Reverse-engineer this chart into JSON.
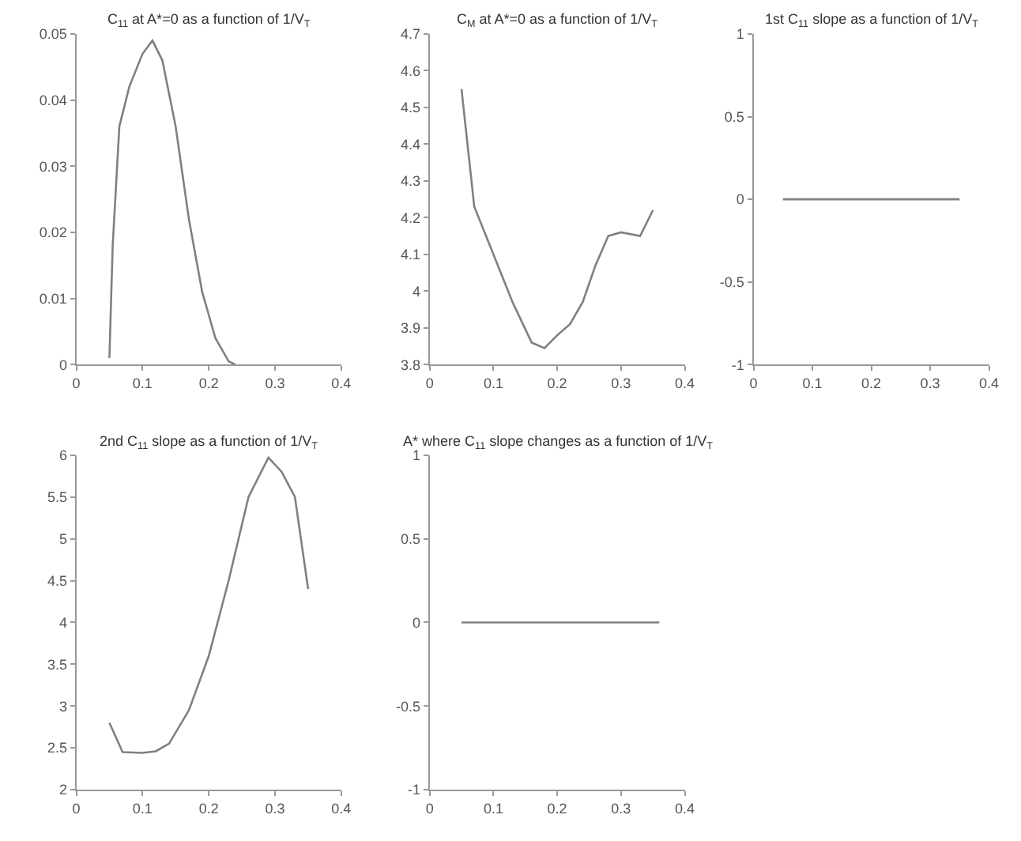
{
  "chart_data": [
    {
      "type": "line",
      "title": "C$_{11}$ at A*=0 as a function of 1/V$_{T}$",
      "x": [
        0.05,
        0.055,
        0.065,
        0.08,
        0.1,
        0.115,
        0.13,
        0.15,
        0.17,
        0.19,
        0.21,
        0.23,
        0.24
      ],
      "series": [
        {
          "color": "#808080",
          "values": [
            0.001,
            0.018,
            0.036,
            0.042,
            0.047,
            0.049,
            0.046,
            0.036,
            0.022,
            0.011,
            0.004,
            0.0005,
            0
          ]
        }
      ],
      "xlim": [
        0,
        0.4
      ],
      "xticks": [
        0,
        0.1,
        0.2,
        0.3,
        0.4
      ],
      "ylim": [
        0,
        0.05
      ],
      "yticks": [
        0,
        0.01,
        0.02,
        0.03,
        0.04,
        0.05
      ]
    },
    {
      "type": "line",
      "title": "C$_{M}$ at A*=0 as a function of 1/V$_{T}$",
      "x": [
        0.05,
        0.07,
        0.1,
        0.13,
        0.16,
        0.18,
        0.2,
        0.22,
        0.24,
        0.26,
        0.28,
        0.3,
        0.33,
        0.35
      ],
      "series": [
        {
          "color": "#808080",
          "values": [
            4.55,
            4.23,
            4.1,
            3.97,
            3.86,
            3.845,
            3.88,
            3.91,
            3.97,
            4.07,
            4.15,
            4.16,
            4.15,
            4.22
          ]
        }
      ],
      "xlim": [
        0,
        0.4
      ],
      "xticks": [
        0,
        0.1,
        0.2,
        0.3,
        0.4
      ],
      "ylim": [
        3.8,
        4.7
      ],
      "yticks": [
        3.8,
        3.9,
        4,
        4.1,
        4.2,
        4.3,
        4.4,
        4.5,
        4.6,
        4.7
      ]
    },
    {
      "type": "line",
      "title": "1st C$_{11}$ slope as a function of 1/V$_{T}$",
      "x": [
        0.05,
        0.35
      ],
      "series": [
        {
          "color": "#808080",
          "values": [
            0,
            0
          ]
        }
      ],
      "xlim": [
        0,
        0.4
      ],
      "xticks": [
        0,
        0.1,
        0.2,
        0.3,
        0.4
      ],
      "ylim": [
        -1,
        1
      ],
      "yticks": [
        -1,
        -0.5,
        0,
        0.5,
        1
      ]
    },
    {
      "type": "line",
      "title": "2nd C$_{11}$ slope as a function of 1/V$_{T}$",
      "x": [
        0.05,
        0.07,
        0.1,
        0.12,
        0.14,
        0.17,
        0.2,
        0.23,
        0.26,
        0.29,
        0.31,
        0.33,
        0.35
      ],
      "series": [
        {
          "color": "#808080",
          "values": [
            2.8,
            2.45,
            2.44,
            2.46,
            2.55,
            2.95,
            3.6,
            4.5,
            5.5,
            5.97,
            5.8,
            5.5,
            4.4
          ]
        }
      ],
      "xlim": [
        0,
        0.4
      ],
      "xticks": [
        0,
        0.1,
        0.2,
        0.3,
        0.4
      ],
      "ylim": [
        2,
        6
      ],
      "yticks": [
        2,
        2.5,
        3,
        3.5,
        4,
        4.5,
        5,
        5.5,
        6
      ]
    },
    {
      "type": "line",
      "title": "A* where C$_{11}$ slope changes as a function of 1/V$_{T}$",
      "x": [
        0.05,
        0.36
      ],
      "series": [
        {
          "color": "#808080",
          "values": [
            0,
            0
          ]
        }
      ],
      "xlim": [
        0,
        0.4
      ],
      "xticks": [
        0,
        0.1,
        0.2,
        0.3,
        0.4
      ],
      "ylim": [
        -1,
        1
      ],
      "yticks": [
        -1,
        -0.5,
        0,
        0.5,
        1
      ]
    }
  ]
}
